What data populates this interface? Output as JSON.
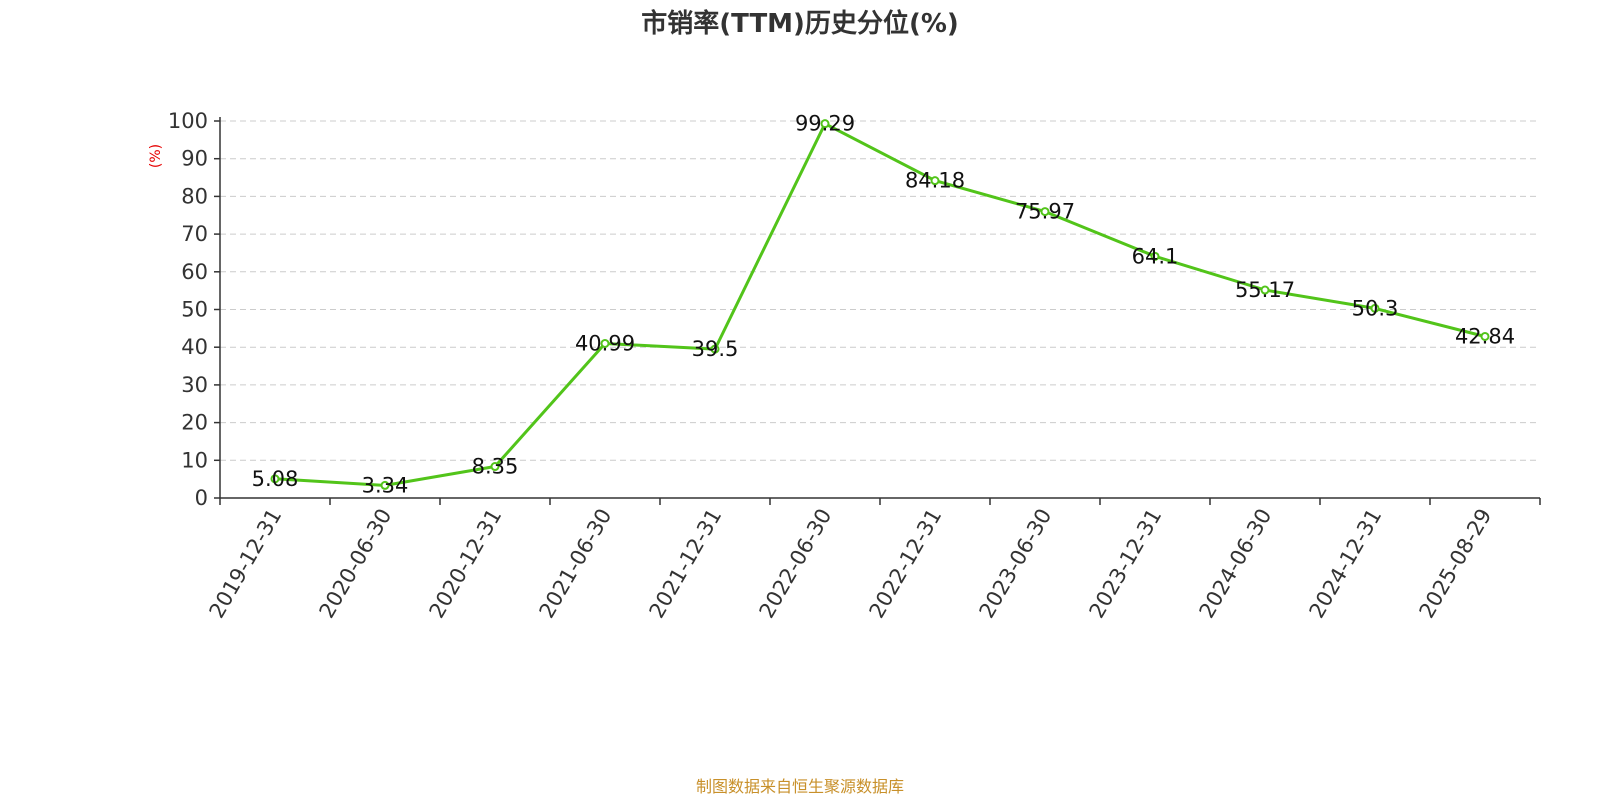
{
  "chart_data": {
    "type": "line",
    "title": "市销率(TTM)历史分位(%)",
    "ylabel": "(%)",
    "xlabel": "",
    "categories": [
      "2019-12-31",
      "2020-06-30",
      "2020-12-31",
      "2021-06-30",
      "2021-12-31",
      "2022-06-30",
      "2022-12-31",
      "2023-06-30",
      "2023-12-31",
      "2024-06-30",
      "2024-12-31",
      "2025-08-29"
    ],
    "values": [
      5.08,
      3.34,
      8.35,
      40.99,
      39.5,
      99.29,
      84.18,
      75.97,
      64.1,
      55.17,
      50.3,
      42.84
    ],
    "data_labels": [
      "5.08",
      "3.34",
      "8.35",
      "40.99",
      "39.5",
      "99.29",
      "84.18",
      "75.97",
      "64.1",
      "55.17",
      "50.3",
      "42.84"
    ],
    "y_ticks": [
      "0",
      "10",
      "20",
      "30",
      "40",
      "50",
      "60",
      "70",
      "80",
      "90",
      "100"
    ],
    "ylim": [
      0,
      100
    ],
    "grid": "horizontal dashed",
    "colors": {
      "line": "#52c41a",
      "title": "#333333",
      "ylabel": "#e60000",
      "source": "#c8902a"
    }
  },
  "source_text": "制图数据来自恒生聚源数据库"
}
